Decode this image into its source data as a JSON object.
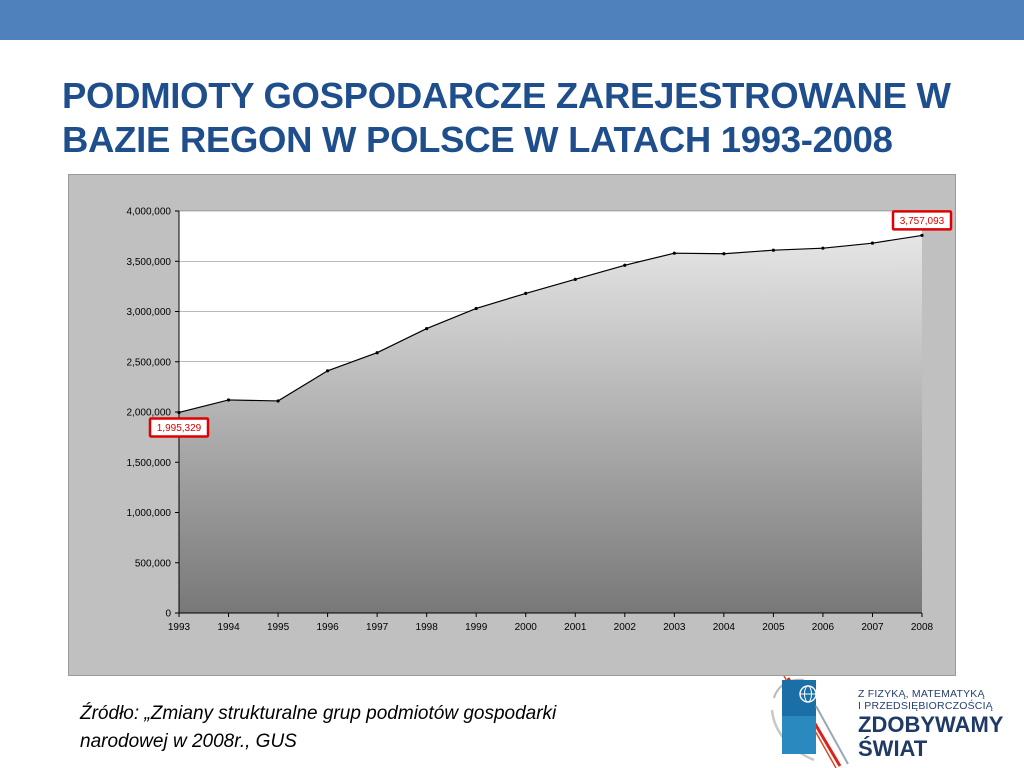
{
  "slide": {
    "title_line1": "Podmioty gospodarcze zarejestrowane w",
    "title_line2": "bazie REGON w Polsce w latach 1993-2008",
    "accent_color": "#4f81bd",
    "title_color": "#1f4e8c"
  },
  "chart_data": {
    "type": "area",
    "title": "",
    "xlabel": "",
    "ylabel": "",
    "x": [
      "1993",
      "1994",
      "1995",
      "1996",
      "1997",
      "1998",
      "1999",
      "2000",
      "2001",
      "2002",
      "2003",
      "2004",
      "2005",
      "2006",
      "2007",
      "2008"
    ],
    "values": [
      1995329,
      2120000,
      2110000,
      2410000,
      2590000,
      2830000,
      3030000,
      3180000,
      3320000,
      3460000,
      3580000,
      3575000,
      3610000,
      3630000,
      3680000,
      3757093
    ],
    "ylim": [
      0,
      4000000
    ],
    "yticks": [
      "0",
      "500,000",
      "1,000,000",
      "1,500,000",
      "2,000,000",
      "2,500,000",
      "3,000,000",
      "3,500,000",
      "4,000,000"
    ],
    "ytick_values": [
      0,
      500000,
      1000000,
      1500000,
      2000000,
      2500000,
      3000000,
      3500000,
      4000000
    ],
    "grid": true,
    "legend": "none",
    "annotations": [
      {
        "label": "1,995,329",
        "x": "1993",
        "value": 1995329,
        "placement": "below"
      },
      {
        "label": "3,757,093",
        "x": "2008",
        "value": 3757093,
        "placement": "above"
      }
    ],
    "annotation_color": "#e00000",
    "fill_top_color": "#e6e6e6",
    "fill_bottom_color": "#787878"
  },
  "source": {
    "line1": "Źródło: „Zmiany strukturalne grup podmiotów gospodarki",
    "line2": "narodowej w 2008r., GUS"
  },
  "logo": {
    "line1": "Z FIZYKĄ, MATEMATYKĄ",
    "line2": "I PRZEDSIĘBIORCZOŚCIĄ",
    "line3": "ZDOBYWAMY",
    "line4": "ŚWIAT"
  }
}
